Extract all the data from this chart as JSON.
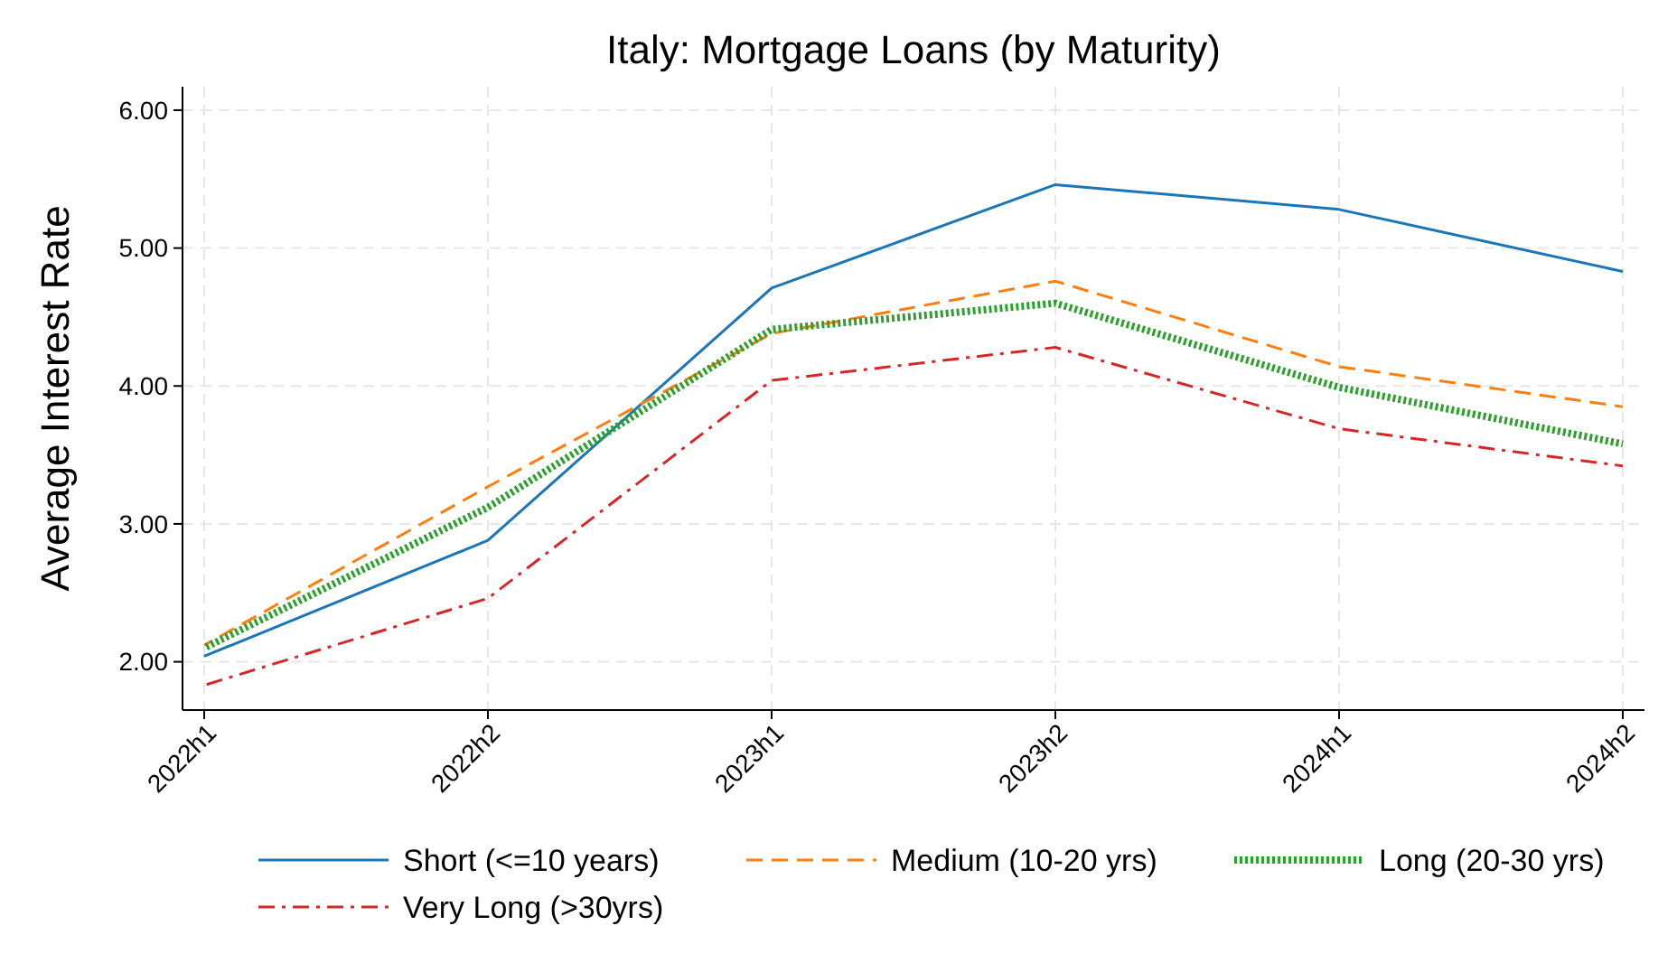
{
  "chart_data": {
    "type": "line",
    "title": "Italy: Mortgage Loans (by Maturity)",
    "ylabel": "Average Interest Rate",
    "categories": [
      "2022h1",
      "2022h2",
      "2023h1",
      "2023h2",
      "2024h1",
      "2024h2"
    ],
    "ylim": [
      1.65,
      6.17
    ],
    "yticks": [
      {
        "value": 2,
        "label": "2.00"
      },
      {
        "value": 3,
        "label": "3.00"
      },
      {
        "value": 4,
        "label": "4.00"
      },
      {
        "value": 5,
        "label": "5.00"
      },
      {
        "value": 6,
        "label": "6.00"
      }
    ],
    "grid": true,
    "legend": "bottom",
    "series": [
      {
        "name": "Short (<=10 years)",
        "color": "#1a76b6",
        "line_style": "solid",
        "values": [
          2.04,
          2.88,
          4.71,
          5.46,
          5.28,
          4.83
        ]
      },
      {
        "name": "Medium (10-20 yrs)",
        "color": "#ff7f0e",
        "line_style": "dashed",
        "values": [
          2.12,
          3.27,
          4.38,
          4.76,
          4.14,
          3.85
        ]
      },
      {
        "name": "Long (20-30 yrs)",
        "color": "#2ca02c",
        "line_style": "dotted",
        "values": [
          2.1,
          3.12,
          4.41,
          4.6,
          3.99,
          3.58
        ]
      },
      {
        "name": "Very Long (>30yrs)",
        "color": "#d62728",
        "line_style": "dashdot",
        "values": [
          1.83,
          2.46,
          4.04,
          4.28,
          3.69,
          3.42
        ]
      }
    ]
  }
}
